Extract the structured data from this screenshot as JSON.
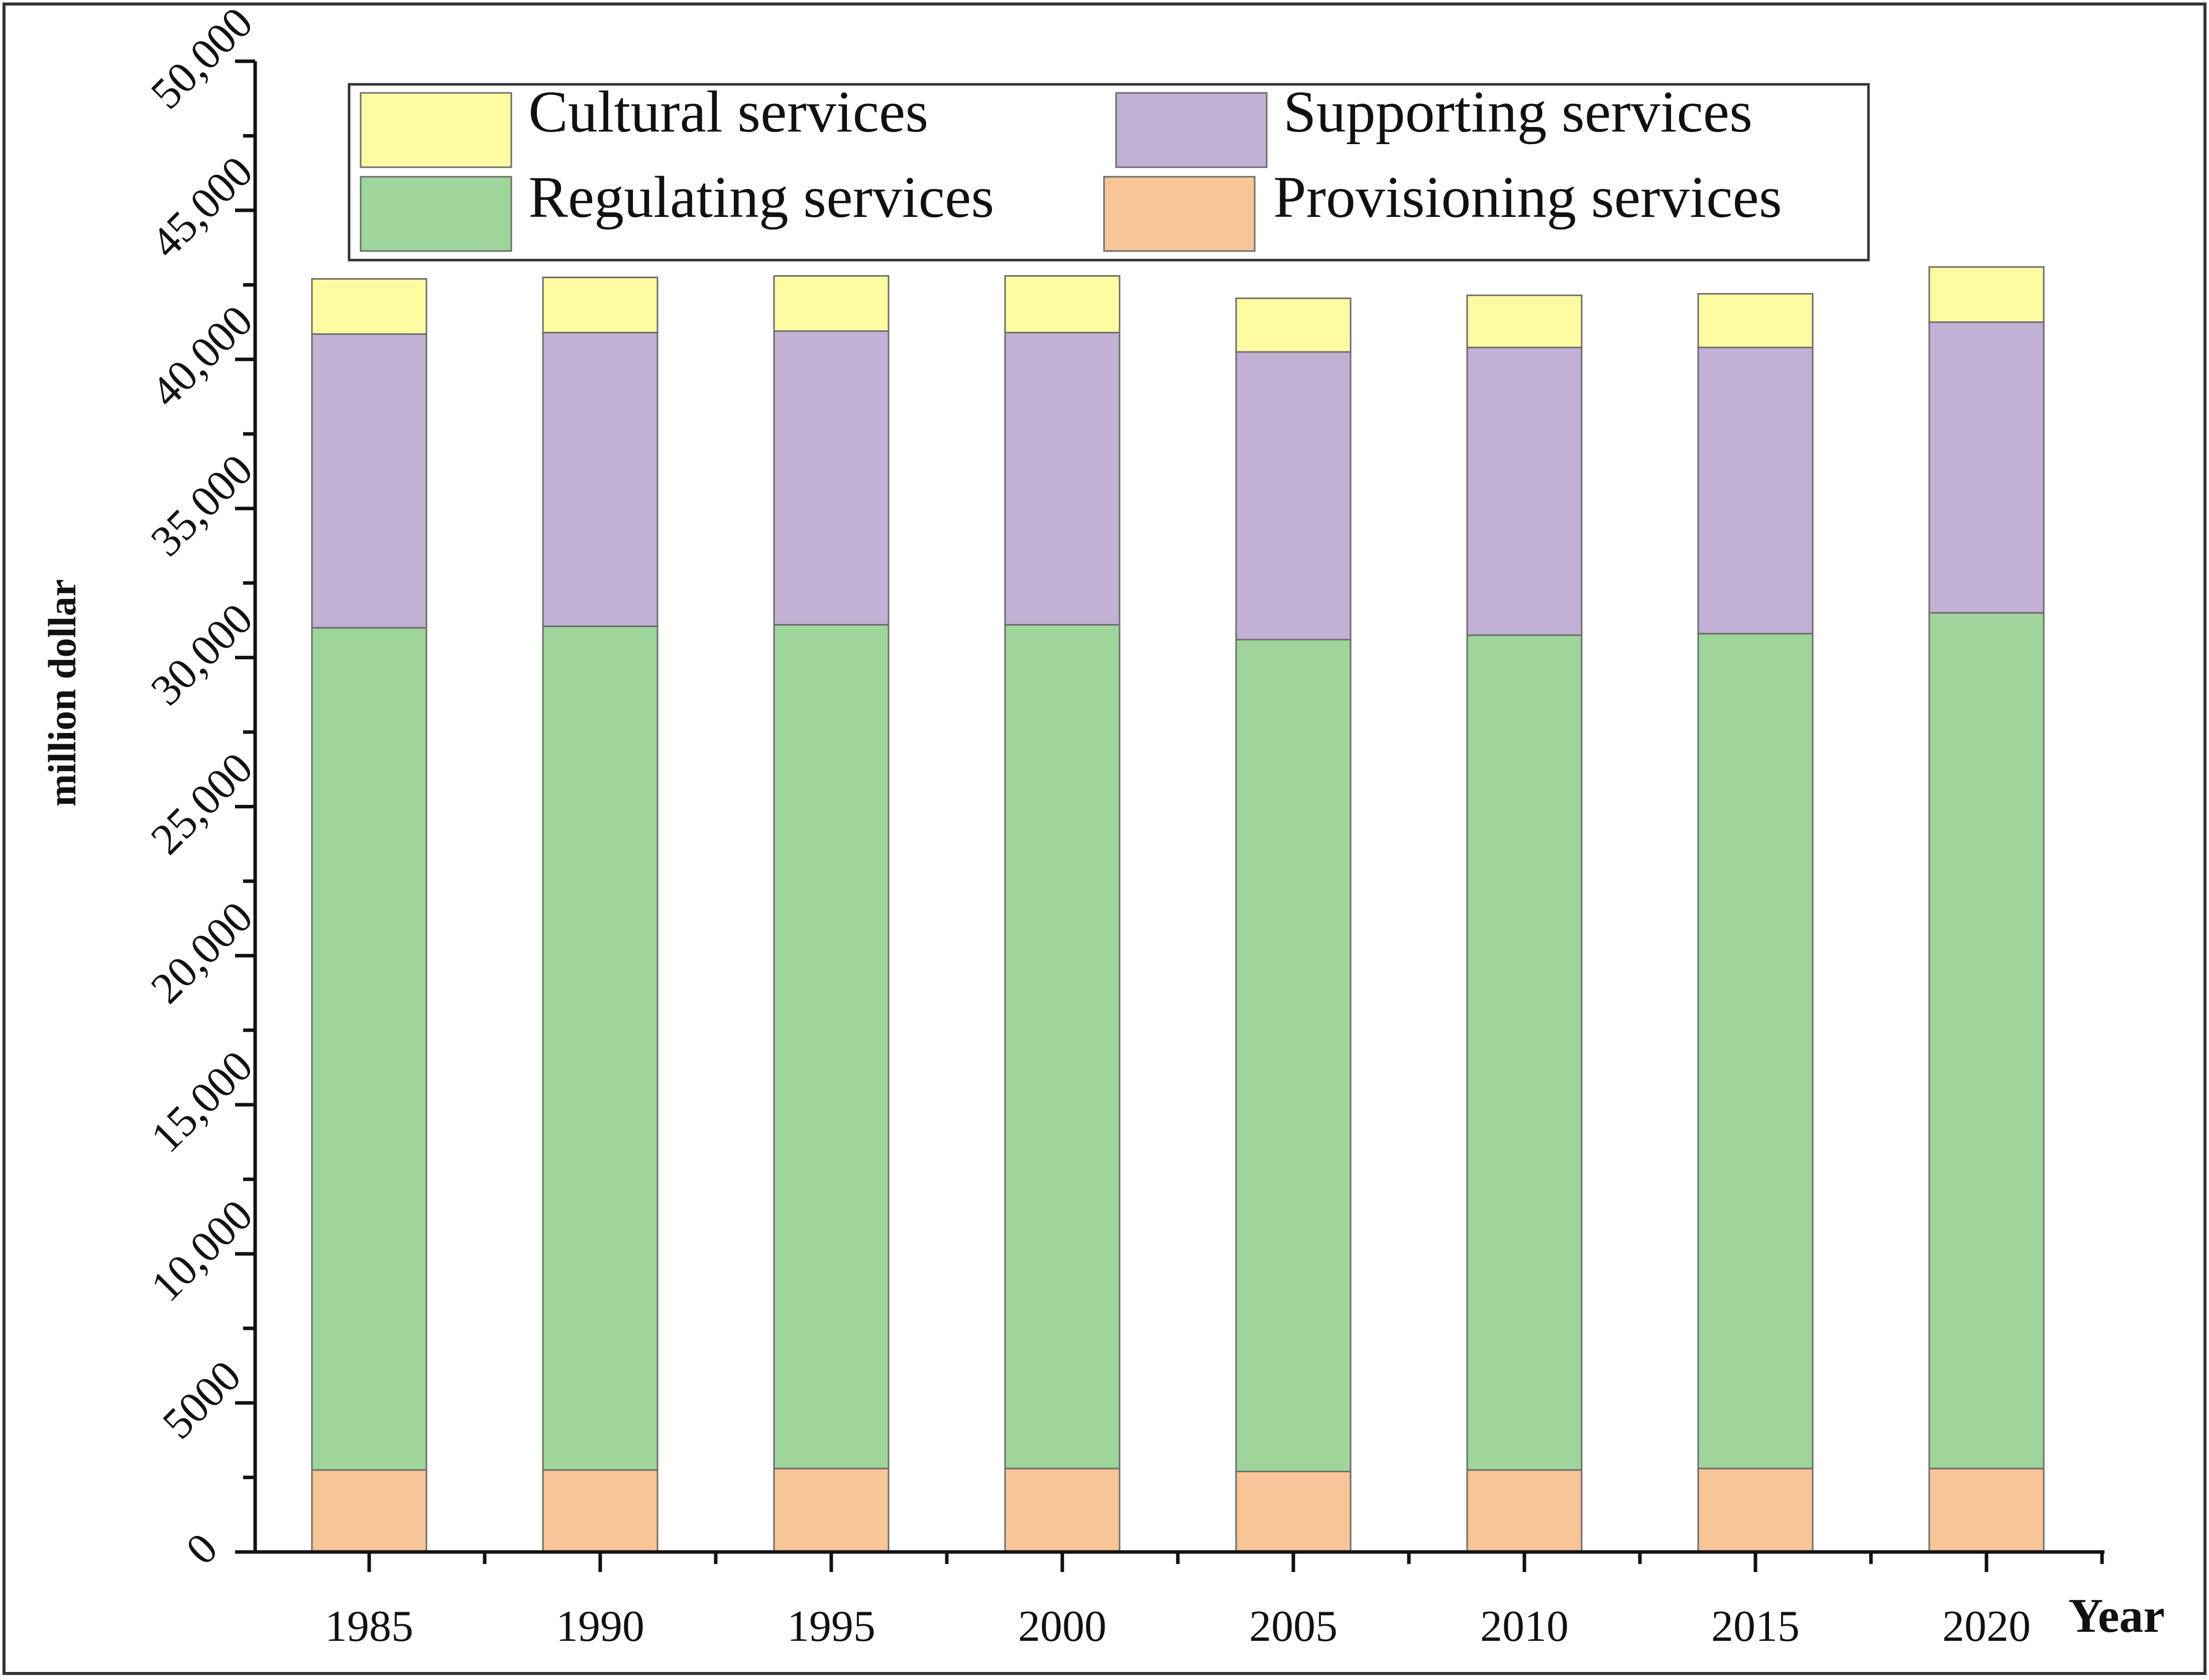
{
  "chart_data": {
    "type": "bar",
    "stacked": true,
    "title": "",
    "xlabel": "Year",
    "ylabel": "million  dollar",
    "ylim": [
      0,
      50000
    ],
    "yticks": [
      0,
      5000,
      10000,
      15000,
      20000,
      25000,
      30000,
      35000,
      40000,
      45000,
      50000
    ],
    "ytick_labels": [
      "0",
      "5000",
      "10,000",
      "15,000",
      "20,000",
      "25,000",
      "30,000",
      "35,000",
      "40,000",
      "45,000",
      "50,000"
    ],
    "categories": [
      "1985",
      "1990",
      "1995",
      "2000",
      "2005",
      "2010",
      "2015",
      "2020"
    ],
    "series": [
      {
        "name": "Provisioning services",
        "color": "#f8c597",
        "values": [
          2750,
          2750,
          2800,
          2800,
          2700,
          2750,
          2800,
          2800
        ]
      },
      {
        "name": "Regulating services",
        "color": "#9dd59b",
        "values": [
          28250,
          28300,
          28300,
          28300,
          27900,
          28000,
          28000,
          28700
        ]
      },
      {
        "name": "Supporting services",
        "color": "#c2b0d5",
        "values": [
          9850,
          9850,
          9850,
          9800,
          9650,
          9650,
          9600,
          9750
        ]
      },
      {
        "name": "Cultural services",
        "color": "#fefba3",
        "values": [
          1850,
          1850,
          1850,
          1900,
          1800,
          1750,
          1800,
          1850
        ]
      }
    ],
    "legend": {
      "position": "top-left",
      "entries": [
        {
          "name": "Cultural services",
          "color": "#fefba3"
        },
        {
          "name": "Supporting services",
          "color": "#c2b0d5"
        },
        {
          "name": "Regulating services",
          "color": "#9dd59b"
        },
        {
          "name": "Provisioning services",
          "color": "#f8c597"
        }
      ]
    },
    "grid": false
  }
}
